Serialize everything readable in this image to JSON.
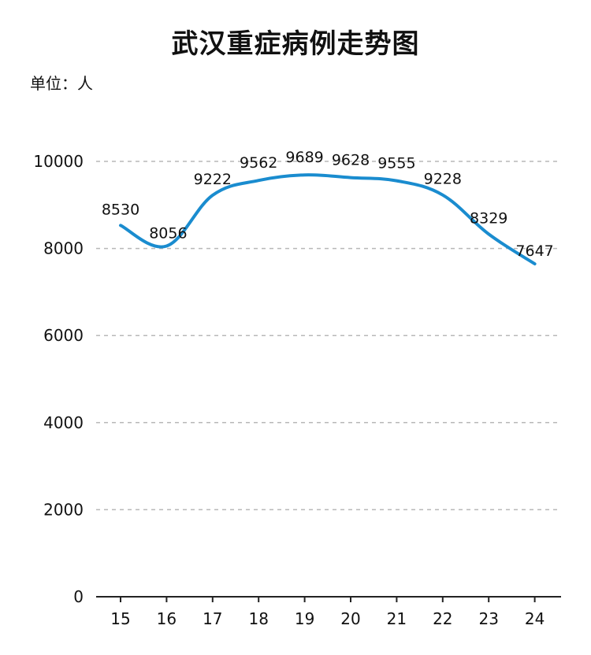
{
  "chart_data": {
    "type": "line",
    "title": "武汉重症病例走势图",
    "unit_label": "单位：人",
    "categories": [
      "15",
      "16",
      "17",
      "18",
      "19",
      "20",
      "21",
      "22",
      "23",
      "24"
    ],
    "values": [
      8530,
      8056,
      9222,
      9562,
      9689,
      9628,
      9555,
      9228,
      8329,
      7647
    ],
    "ylim": [
      0,
      10000
    ],
    "yticks": [
      0,
      2000,
      4000,
      6000,
      8000,
      10000
    ],
    "grid": true,
    "line_color": "#1a8ccf",
    "grid_color": "#b8b8b8"
  }
}
